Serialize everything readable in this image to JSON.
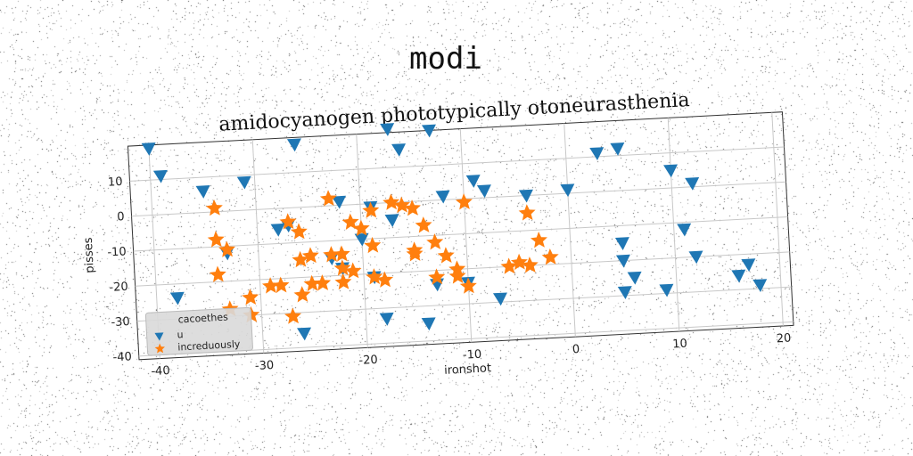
{
  "suptitle": "modi",
  "colors": {
    "series1": "#1f77b4",
    "series2": "#ff7f0e"
  },
  "chart_data": {
    "type": "scatter",
    "title": "amidocyanogen phototypically otoneurasthenia",
    "xlabel": "ironshot",
    "ylabel": "pisses",
    "xlim": [
      -42,
      21
    ],
    "ylim": [
      -41,
      20
    ],
    "xticks": [
      -40,
      -30,
      -20,
      -10,
      0,
      10,
      20
    ],
    "yticks": [
      -40,
      -30,
      -20,
      -10,
      0,
      10
    ],
    "grid": true,
    "legend": {
      "title": "cacoethes",
      "position": "lower-left"
    },
    "series": [
      {
        "name": "u",
        "marker": "triangle-down",
        "points": [
          [
            -40,
            19
          ],
          [
            -39,
            11
          ],
          [
            -35,
            6
          ],
          [
            -31,
            8
          ],
          [
            -26,
            18
          ],
          [
            -17,
            21
          ],
          [
            -16,
            15
          ],
          [
            -13,
            20
          ],
          [
            -12,
            1
          ],
          [
            -9,
            5
          ],
          [
            -8,
            2
          ],
          [
            -4,
            0
          ],
          [
            0,
            1
          ],
          [
            3,
            11
          ],
          [
            5,
            12
          ],
          [
            10,
            5
          ],
          [
            12,
            1
          ],
          [
            -38,
            -24
          ],
          [
            -33,
            -12
          ],
          [
            -28,
            -6
          ],
          [
            -27,
            -5
          ],
          [
            -26,
            -36
          ],
          [
            -23,
            -15
          ],
          [
            -22,
            -18
          ],
          [
            -20,
            -10
          ],
          [
            -19,
            -21
          ],
          [
            -18,
            -33
          ],
          [
            -17,
            -5
          ],
          [
            -14,
            -35
          ],
          [
            -13,
            -24
          ],
          [
            -10,
            -24
          ],
          [
            -7,
            -29
          ],
          [
            5,
            -15
          ],
          [
            5,
            -20
          ],
          [
            5,
            -29
          ],
          [
            6,
            -25
          ],
          [
            9,
            -29
          ],
          [
            11,
            -12
          ],
          [
            12,
            -20
          ],
          [
            16,
            -26
          ],
          [
            17,
            -23
          ],
          [
            18,
            -29
          ],
          [
            -22,
            1
          ],
          [
            -19,
            -1
          ]
        ]
      },
      {
        "name": "increduously",
        "marker": "star",
        "points": [
          [
            -34,
            1
          ],
          [
            -34,
            -8
          ],
          [
            -33,
            -11
          ],
          [
            -34,
            -18
          ],
          [
            -33,
            -28
          ],
          [
            -31,
            -25
          ],
          [
            -31,
            -30
          ],
          [
            -29,
            -22
          ],
          [
            -28,
            -22
          ],
          [
            -27,
            -4
          ],
          [
            -27,
            -31
          ],
          [
            -26,
            -7
          ],
          [
            -26,
            -15
          ],
          [
            -26,
            -25
          ],
          [
            -25,
            -14
          ],
          [
            -25,
            -22
          ],
          [
            -24,
            -22
          ],
          [
            -23,
            -14
          ],
          [
            -23,
            2
          ],
          [
            -22,
            -18
          ],
          [
            -22,
            -22
          ],
          [
            -22,
            -14
          ],
          [
            -21,
            -5
          ],
          [
            -21,
            -19
          ],
          [
            -20,
            -7
          ],
          [
            -19,
            -2
          ],
          [
            -19,
            -12
          ],
          [
            -19,
            -21
          ],
          [
            -18,
            -22
          ],
          [
            -17,
            0
          ],
          [
            -16,
            -1
          ],
          [
            -15,
            -2
          ],
          [
            -15,
            -14
          ],
          [
            -15,
            -15
          ],
          [
            -14,
            -7
          ],
          [
            -13,
            -12
          ],
          [
            -13,
            -22
          ],
          [
            -12,
            -16
          ],
          [
            -11,
            -20
          ],
          [
            -11,
            -22
          ],
          [
            -10,
            -25
          ],
          [
            -10,
            -1
          ],
          [
            -6,
            -20
          ],
          [
            -5,
            -19
          ],
          [
            -4,
            -20
          ],
          [
            -4,
            -5
          ],
          [
            -3,
            -13
          ],
          [
            -2,
            -18
          ]
        ]
      }
    ]
  }
}
